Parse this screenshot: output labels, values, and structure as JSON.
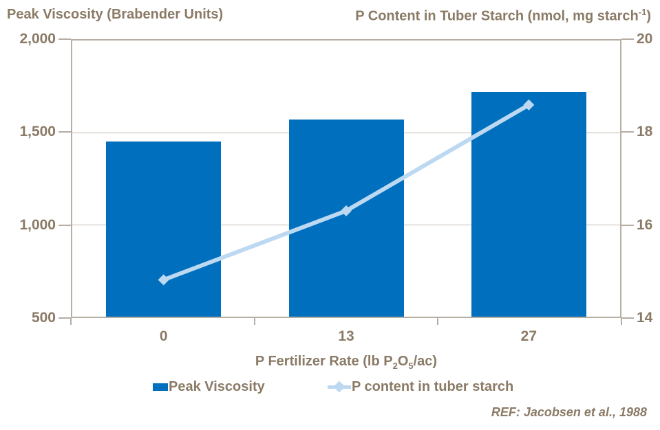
{
  "titles": {
    "left_axis": "Peak Viscosity (Brabender Units)",
    "right_axis_pre": "P Content in Tuber Starch (nmol, mg starch",
    "right_axis_sup": "-1",
    "right_axis_post": ")"
  },
  "xaxis_title": {
    "pre": "P Fertilizer Rate (lb P",
    "sub1": "2",
    "mid": "O",
    "sub2": "5",
    "post": "/ac)"
  },
  "legend": {
    "bar_label": "Peak Viscosity",
    "line_label": "P content in tuber starch"
  },
  "footer": {
    "ref": "REF: Jacobsen et al., 1988"
  },
  "colors": {
    "bar": "#0070BE",
    "line": "#BDD9F2",
    "text": "#8A7A66",
    "axis_frame": "#B6ADA3",
    "gridline": "#C2BAB1",
    "background": "#FFFFFF"
  },
  "chart_data": {
    "type": "bar",
    "subtype": "bar-and-line-dual-axis",
    "categories": [
      "0",
      "13",
      "27"
    ],
    "series": [
      {
        "name": "Peak Viscosity",
        "render": "bar",
        "axis": "left",
        "values": [
          1450,
          1570,
          1720
        ],
        "color": "#0070BE"
      },
      {
        "name": "P content in tuber starch",
        "render": "line",
        "axis": "right",
        "values": [
          14.8,
          16.3,
          18.6
        ],
        "color": "#BDD9F2",
        "marker": "diamond"
      }
    ],
    "title": "",
    "xlabel": "P Fertilizer Rate (lb P2O5/ac)",
    "left_axis": {
      "label": "Peak Viscosity (Brabender Units)",
      "min": 500,
      "max": 2000,
      "ticks": [
        2000,
        1500,
        1000,
        500
      ],
      "tick_labels": [
        "2,000",
        "1,500",
        "1,000",
        "500"
      ]
    },
    "right_axis": {
      "label": "P Content in Tuber Starch (nmol, mg starch-1)",
      "min": 14,
      "max": 20,
      "ticks": [
        20,
        18,
        16,
        14
      ],
      "tick_labels": [
        "20",
        "18",
        "16",
        "14"
      ]
    },
    "grid": "horizontal-major",
    "legend_position": "bottom",
    "annotation": "REF: Jacobsen et al., 1988"
  }
}
